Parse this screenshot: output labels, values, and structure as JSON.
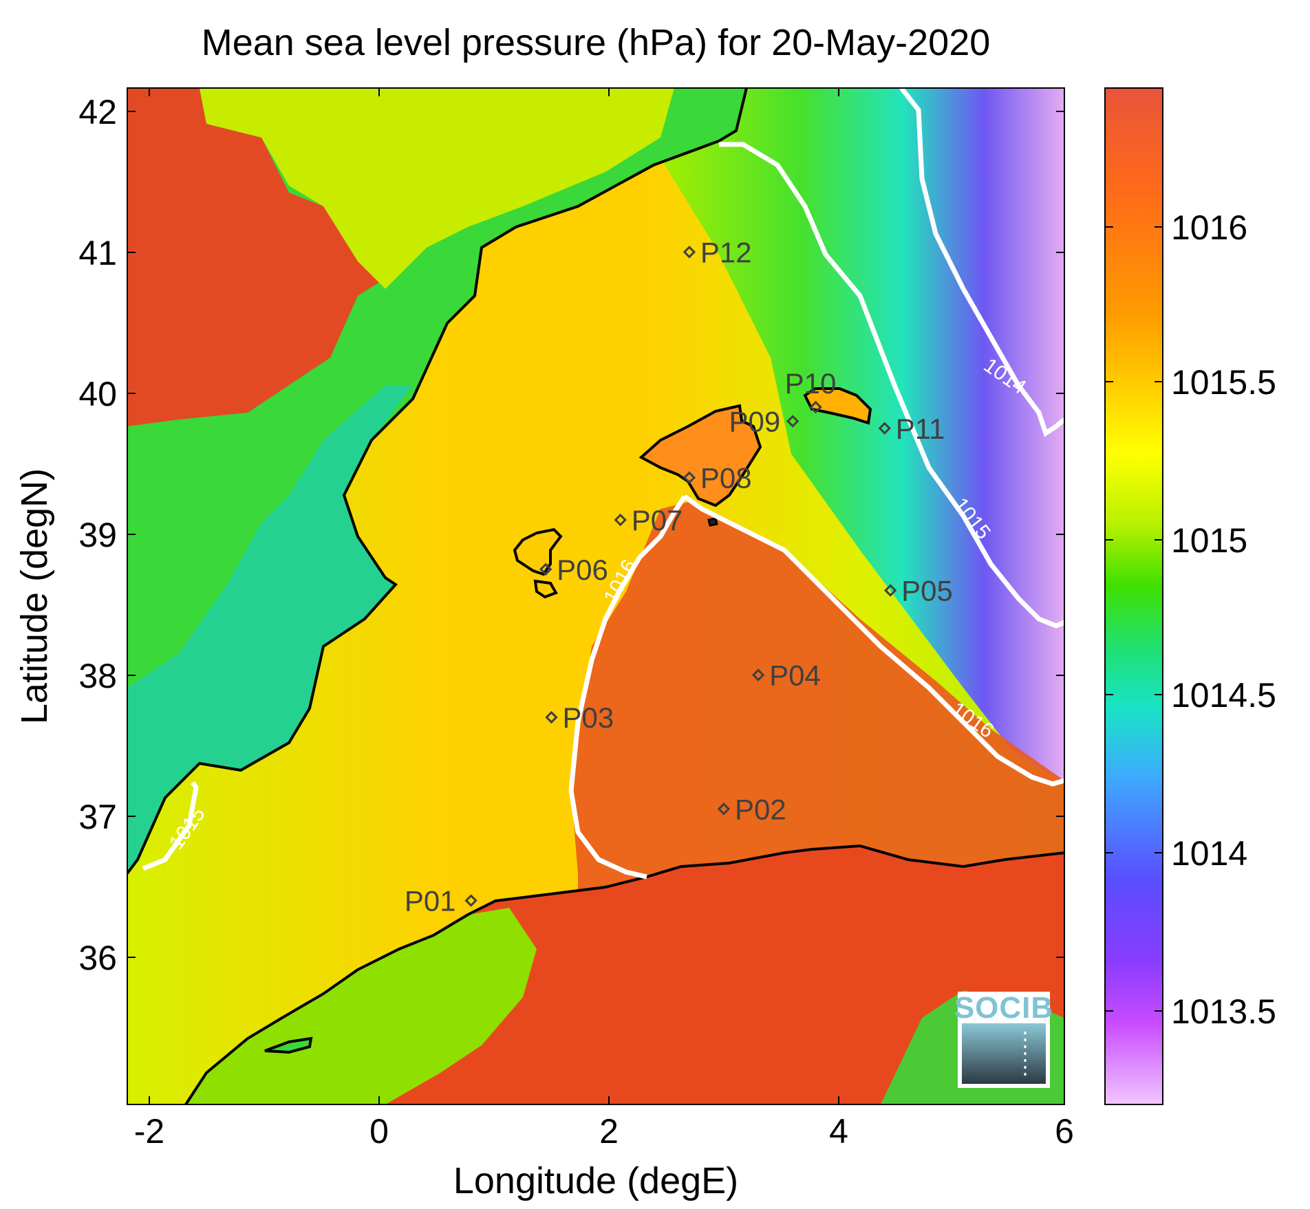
{
  "title": "Mean sea level pressure (hPa) for 20-May-2020",
  "xaxis": {
    "label": "Longitude (degE)",
    "ticks": [
      "-2",
      "0",
      "2",
      "4",
      "6"
    ]
  },
  "yaxis": {
    "label": "Latitude (degN)",
    "ticks": [
      "42",
      "41",
      "40",
      "39",
      "38",
      "37",
      "36"
    ]
  },
  "colorbar": {
    "ticks": [
      "1016",
      "1015.5",
      "1015",
      "1014.5",
      "1014",
      "1013.5"
    ],
    "colors": [
      "#e8543a",
      "#ff8c00",
      "#ffd700",
      "#ffff00",
      "#b6f000",
      "#3ee000",
      "#20e06e",
      "#19e3c6",
      "#3fa8ff",
      "#5a4dff",
      "#9a3cff",
      "#d060ff",
      "#f0b8ff"
    ]
  },
  "stations": [
    {
      "id": "P01",
      "lon": 0.8,
      "lat": 36.5
    },
    {
      "id": "P02",
      "lon": 3.0,
      "lat": 37.15
    },
    {
      "id": "P03",
      "lon": 1.5,
      "lat": 37.8
    },
    {
      "id": "P04",
      "lon": 3.3,
      "lat": 38.1
    },
    {
      "id": "P05",
      "lon": 4.45,
      "lat": 38.7
    },
    {
      "id": "P06",
      "lon": 1.45,
      "lat": 38.85
    },
    {
      "id": "P07",
      "lon": 2.1,
      "lat": 39.2
    },
    {
      "id": "P08",
      "lon": 2.7,
      "lat": 39.5
    },
    {
      "id": "P09",
      "lon": 3.6,
      "lat": 39.9
    },
    {
      "id": "P10",
      "lon": 3.8,
      "lat": 40.0
    },
    {
      "id": "P11",
      "lon": 4.4,
      "lat": 39.85
    },
    {
      "id": "P12",
      "lon": 2.7,
      "lat": 41.1
    }
  ],
  "contour_labels": [
    "1014",
    "1015",
    "1016",
    "1016",
    "1015"
  ],
  "logo": {
    "text": "SOCIB"
  }
}
